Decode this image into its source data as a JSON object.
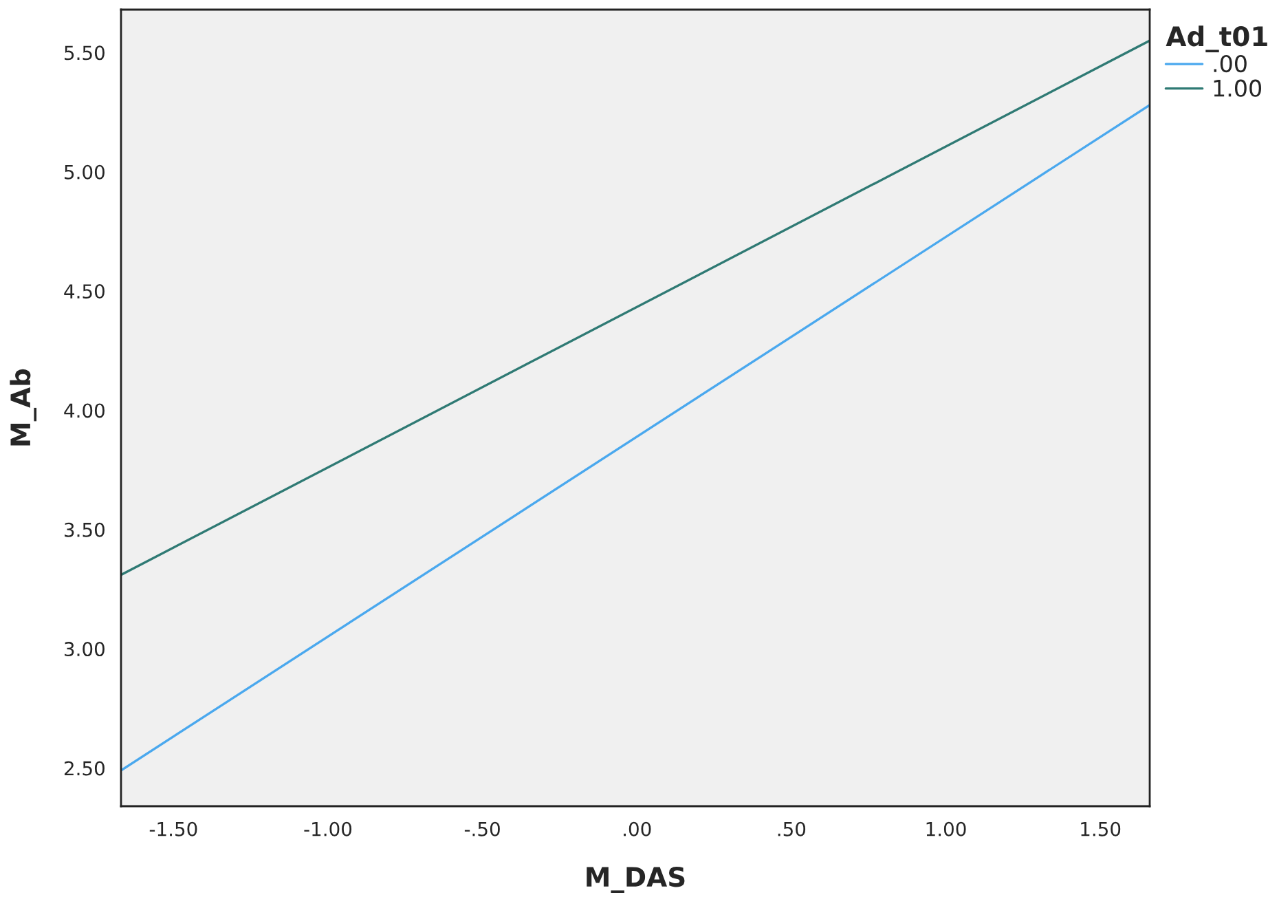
{
  "chart_data": {
    "type": "line",
    "xlabel": "M_DAS",
    "ylabel": "M_Ab",
    "legend_title": "Ad_t01",
    "legend": "top right",
    "grid": false,
    "marker": "none",
    "line_style": "solid",
    "x": [
      -1.67,
      1.66
    ],
    "series": [
      {
        "name": ".00",
        "color": "#4aa8ee",
        "values": [
          2.49,
          5.28
        ]
      },
      {
        "name": "1.00",
        "color": "#2f7a74",
        "values": [
          3.31,
          5.55
        ]
      }
    ],
    "xlim": [
      -1.67,
      1.66
    ],
    "ylim": [
      2.34,
      5.68
    ],
    "xticks": [
      {
        "value": -1.5,
        "label": "-1.50"
      },
      {
        "value": -1.0,
        "label": "-1.00"
      },
      {
        "value": -0.5,
        "label": "-.50"
      },
      {
        "value": 0,
        "label": ".00"
      },
      {
        "value": 0.5,
        "label": ".50"
      },
      {
        "value": 1.0,
        "label": "1.00"
      },
      {
        "value": 1.5,
        "label": "1.50"
      }
    ],
    "yticks": [
      {
        "value": 2.5,
        "label": "2.50"
      },
      {
        "value": 3.0,
        "label": "3.00"
      },
      {
        "value": 3.5,
        "label": "3.50"
      },
      {
        "value": 4.0,
        "label": "4.00"
      },
      {
        "value": 4.5,
        "label": "4.50"
      },
      {
        "value": 5.0,
        "label": "5.00"
      },
      {
        "value": 5.5,
        "label": "5.50"
      }
    ]
  }
}
